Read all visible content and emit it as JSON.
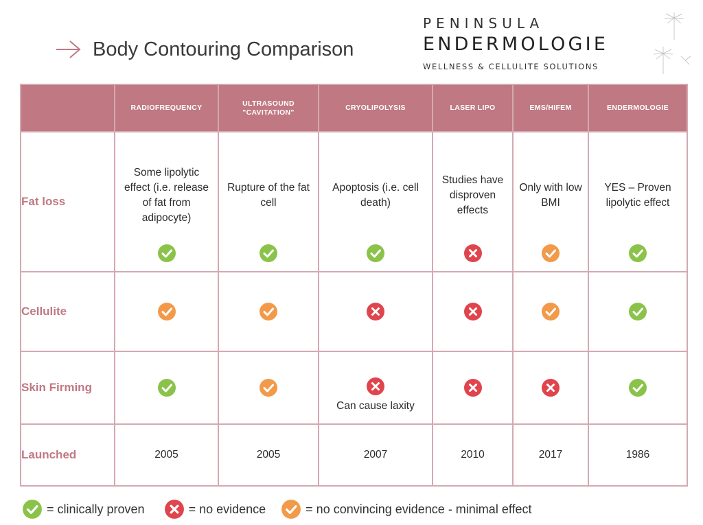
{
  "title": "Body Contouring Comparison",
  "brand": {
    "line1": "PENINSULA",
    "line2": "ENDERMOLOGIE",
    "tagline": "WELLNESS & CELLULITE SOLUTIONS"
  },
  "colors": {
    "header_bg": "#c07883",
    "row_label": "#c07883",
    "border": "#d4a9b0",
    "check": "#8bc34a",
    "no": "#e0444c",
    "partial": "#f29a4a"
  },
  "columns": [
    "RADIOFREQUENCY",
    "ULTRASOUND \"CAVITATION\"",
    "CRYOLIPOLYSIS",
    "LASER LIPO",
    "EMS/HIFEM",
    "ENDERMOLOGIE"
  ],
  "rows": {
    "fat": {
      "label": "Fat loss",
      "cells": [
        {
          "text": "Some lipolytic effect (i.e. release of fat from adipocyte)",
          "status": "check"
        },
        {
          "text": "Rupture of the fat cell",
          "status": "check"
        },
        {
          "text": "Apoptosis (i.e. cell death)",
          "status": "check"
        },
        {
          "text": "Studies have disproven effects",
          "status": "no"
        },
        {
          "text": "Only with low BMI",
          "status": "partial"
        },
        {
          "text": "YES – Proven lipolytic effect",
          "status": "check"
        }
      ]
    },
    "cellulite": {
      "label": "Cellulite",
      "cells": [
        {
          "status": "partial"
        },
        {
          "status": "partial"
        },
        {
          "status": "no"
        },
        {
          "status": "no"
        },
        {
          "status": "partial"
        },
        {
          "status": "check"
        }
      ]
    },
    "skin": {
      "label": "Skin Firming",
      "cells": [
        {
          "status": "check"
        },
        {
          "status": "partial"
        },
        {
          "status": "no",
          "note": "Can cause laxity"
        },
        {
          "status": "no"
        },
        {
          "status": "no"
        },
        {
          "status": "check"
        }
      ]
    },
    "launched": {
      "label": "Launched",
      "cells": [
        "2005",
        "2005",
        "2007",
        "2010",
        "2017",
        "1986"
      ]
    }
  },
  "legend": {
    "check": "= clinically proven",
    "no": "= no evidence",
    "partial": "= no convincing evidence - minimal effect"
  },
  "icons": {
    "check": "check-circle-icon",
    "no": "x-circle-icon",
    "partial": "partial-check-circle-icon"
  }
}
